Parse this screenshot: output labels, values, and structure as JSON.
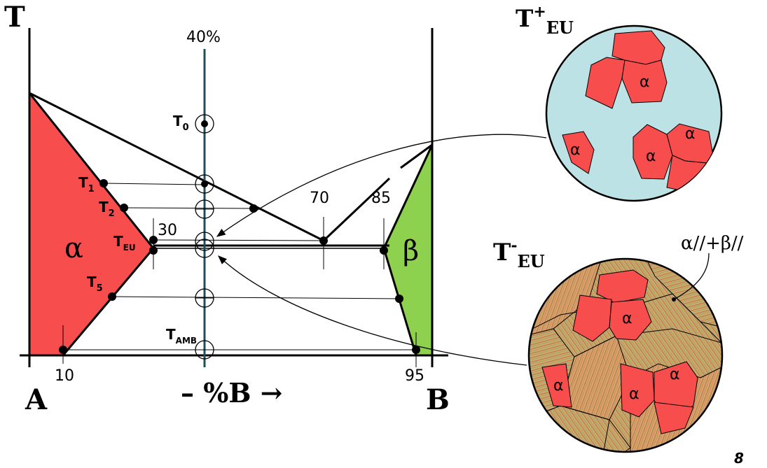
{
  "diagram": {
    "axis_t": "T",
    "axis_a": "A",
    "axis_b": "B",
    "composition_axis": "– %B →",
    "page_number": "8",
    "comp_40": "40%",
    "comp_10": "10",
    "comp_30": "30",
    "comp_70": "70",
    "comp_85": "85",
    "comp_95": "95",
    "phase_alpha": "α",
    "phase_beta": "β",
    "temps": {
      "t0": "T",
      "t0_sub": "0",
      "t1": "T",
      "t1_sub": "1",
      "t2": "T",
      "t2_sub": "2",
      "teu": "T",
      "teu_sub": "EU",
      "t5": "T",
      "t5_sub": "5",
      "tamb": "T",
      "tamb_sub": "AMB"
    }
  },
  "micro_top": {
    "title_main": "T",
    "title_sup": "+",
    "title_sub": "EU",
    "grain_label": "α"
  },
  "micro_bottom": {
    "title_main": "T",
    "title_sup": "-",
    "title_sub": "EU",
    "annotation": "α//+β//",
    "grain_label": "α"
  },
  "colors": {
    "alpha": "#f84d4d",
    "beta": "#8ed14e",
    "liquid": "#bde2e6",
    "eutectic": "#d4a56b",
    "line": "#000000",
    "composition_line": "#1f4e5f"
  }
}
